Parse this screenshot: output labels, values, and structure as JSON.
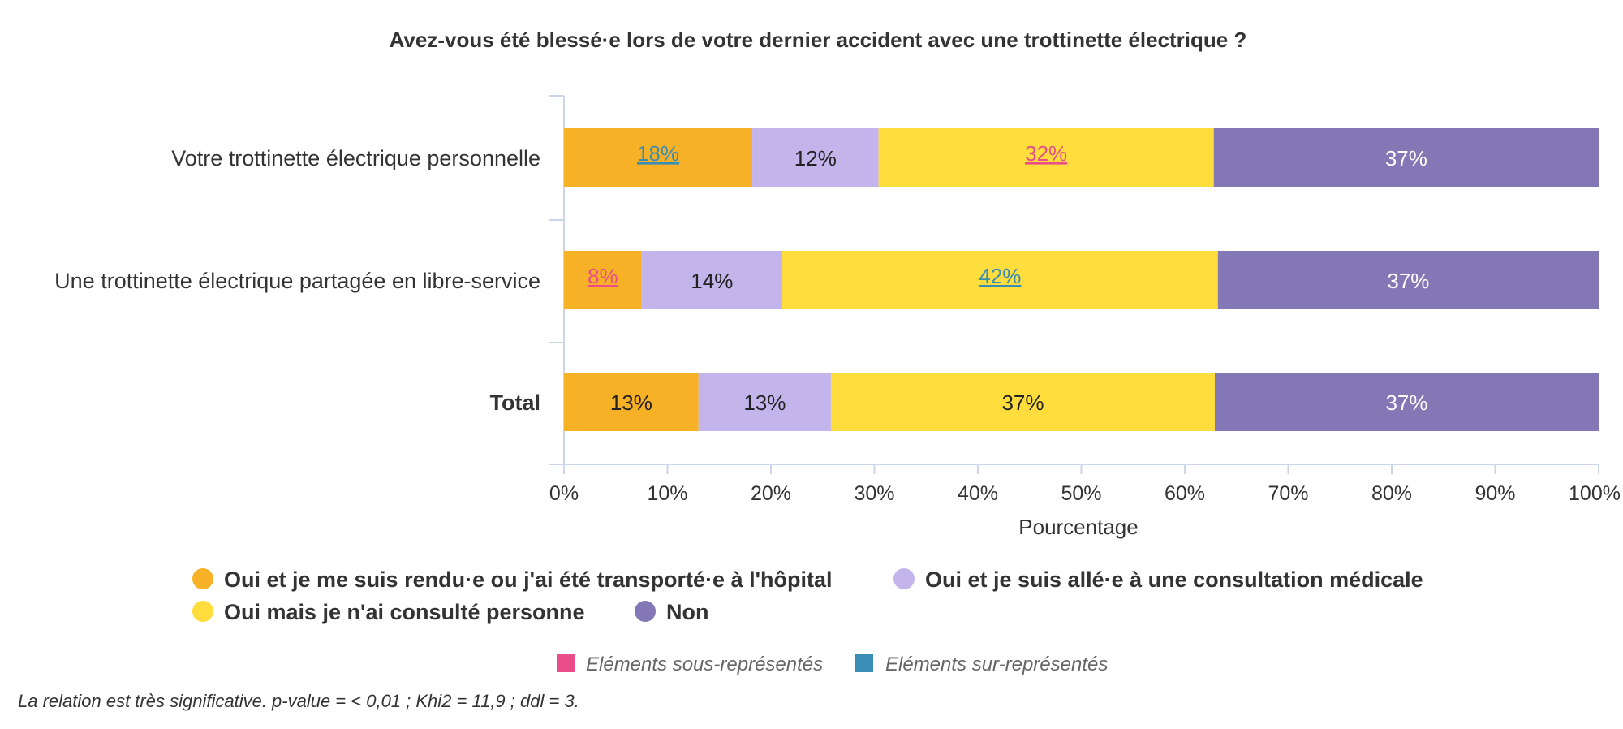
{
  "chart_data": {
    "type": "bar",
    "orientation": "horizontal",
    "stacked": "percent",
    "title": "Avez-vous été blessé·e lors de votre dernier accident avec une trottinette électrique ?",
    "xlabel": "Pourcentage",
    "ylabel": "",
    "xlim": [
      0,
      100
    ],
    "xticks": [
      "0%",
      "10%",
      "20%",
      "30%",
      "40%",
      "50%",
      "60%",
      "70%",
      "80%",
      "90%",
      "100%"
    ],
    "categories": [
      "Votre trottinette électrique personnelle",
      "Une trottinette électrique partagée en libre-service",
      "Total"
    ],
    "series": [
      {
        "name": "Oui et je me suis rendu·e ou j'ai été transporté·e à l'hôpital",
        "color": "#F7B126",
        "values": [
          18.2,
          7.5,
          13.0
        ],
        "labels": [
          "18%",
          "8%",
          "13%"
        ],
        "marks": [
          "over",
          "under",
          "none"
        ],
        "label_color": "#222222"
      },
      {
        "name": "Oui et je suis allé·e à une consultation médicale",
        "color": "#C3B5EC",
        "values": [
          12.2,
          13.6,
          12.8
        ],
        "labels": [
          "12%",
          "14%",
          "13%"
        ],
        "marks": [
          "none",
          "none",
          "none"
        ],
        "label_color": "#222222"
      },
      {
        "name": "Oui mais je n'ai consulté personne",
        "color": "#FFDD3C",
        "values": [
          32.4,
          42.1,
          37.1
        ],
        "labels": [
          "32%",
          "42%",
          "37%"
        ],
        "marks": [
          "under",
          "over",
          "none"
        ],
        "label_color": "#222222"
      },
      {
        "name": "Non",
        "color": "#8378B5",
        "values": [
          37.2,
          36.8,
          37.1
        ],
        "labels": [
          "37%",
          "37%",
          "37%"
        ],
        "marks": [
          "none",
          "none",
          "none"
        ],
        "label_color": "#ffffff"
      }
    ],
    "bold_categories": [
      "Total"
    ],
    "legend_position": "bottom",
    "grid": false
  },
  "significance_legend": {
    "under": {
      "label": "Eléments sous-représentés",
      "color": "#E94E8A"
    },
    "over": {
      "label": "Eléments sur-représentés",
      "color": "#3A8DB5"
    }
  },
  "footnote": "La relation est très significative. p-value = < 0,01 ; Khi2 = 11,9 ; ddl = 3."
}
